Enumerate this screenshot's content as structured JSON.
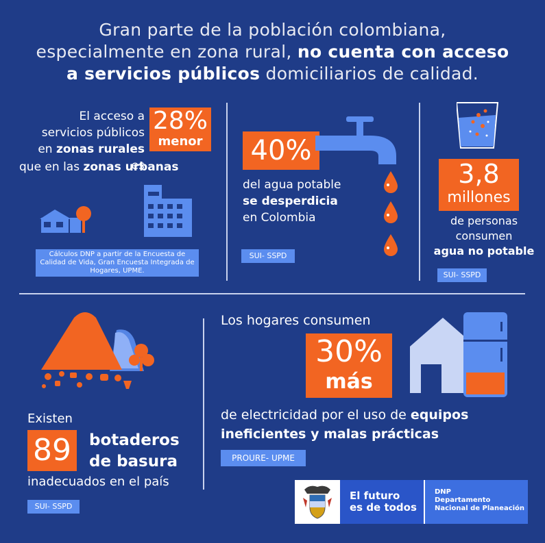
{
  "title": {
    "line1": "Gran parte de la población colombiana,",
    "line2a": "especialmente en zona rural, ",
    "line2b": "no cuenta con acceso",
    "line3a": "a servicios públicos",
    "line3b": " domiciliarios de calidad."
  },
  "rural": {
    "l1": "El acceso a",
    "l2": "servicios públicos",
    "l3a": "en ",
    "l3b": "zonas rurales",
    "l3c": " es",
    "l4a": "que en las ",
    "l4b": "zonas urbanas",
    "pct": "28%",
    "word": "menor",
    "source": "Cálculos DNP a partir de la Encuesta de Calidad de Vida, Gran Encuesta Integrada de Hogares, UPME."
  },
  "water": {
    "pct": "40%",
    "l1": "del agua potable",
    "l2": "se desperdicia",
    "l3": "en Colombia",
    "source": "SUI- SSPD"
  },
  "nonpotable": {
    "num": "3,8",
    "unit": "millones",
    "l1": "de personas",
    "l2": "consumen",
    "l3": "agua no potable",
    "source": "SUI- SSPD"
  },
  "garbage": {
    "l1": "Existen",
    "num": "89",
    "b1": "botaderos",
    "b2": "de basura",
    "l2": "inadecuados en el país",
    "source": "SUI- SSPD"
  },
  "energy": {
    "l1": "Los hogares consumen",
    "pct": "30%",
    "word": "más",
    "l2a": "de electricidad por el uso de ",
    "l2b": "equipos",
    "l3": "ineficientes y malas prácticas",
    "source": "PROURE- UPME"
  },
  "footer": {
    "slogan1": "El futuro",
    "slogan2": "es de todos",
    "dnp": "DNP",
    "dept1": "Departamento",
    "dept2": "Nacional de Planeación"
  },
  "colors": {
    "background": "#1f3c88",
    "accent": "#f26522",
    "light_blue": "#5b8def"
  }
}
